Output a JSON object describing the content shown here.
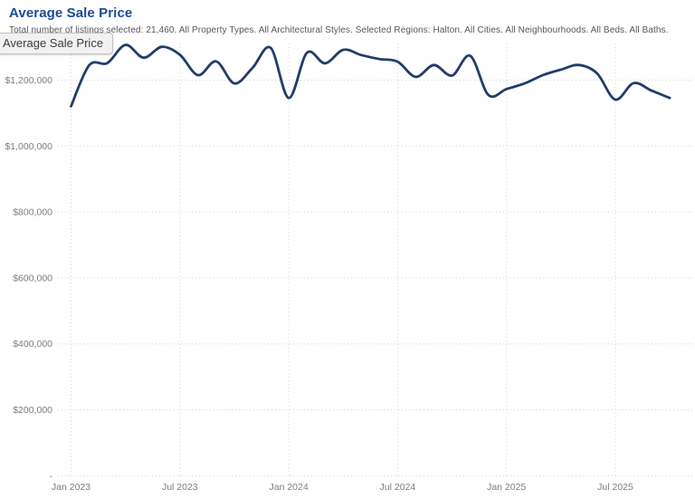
{
  "page": {
    "title": "Average Sale Price",
    "subtitle": "Total number of listings selected: 21,460. All Property Types. All Architectural Styles. Selected Regions: Halton. All Cities. All Neighbourhoods. All Beds. All Baths.",
    "tooltip": {
      "label": "Average Sale Price"
    }
  },
  "colors": {
    "background": "#ffffff",
    "title": "#1c4b94",
    "subtitle": "#575757",
    "line": "#213d6b",
    "grid": "#d6d6d6",
    "axis_label": "#7d7d7d",
    "tooltip_bg": "#f1f1f1",
    "tooltip_border": "#c2c2c2",
    "tooltip_text": "#3d3d3d"
  },
  "chart_data": {
    "type": "line",
    "title": "Average Sale Price",
    "xlabel": "",
    "ylabel": "",
    "legend": "none",
    "grid": "dotted",
    "smoothing": "spline",
    "ylim": [
      0,
      1400000
    ],
    "x": [
      "Jan 2023",
      "Feb 2023",
      "Mar 2023",
      "Apr 2023",
      "May 2023",
      "Jun 2023",
      "Jul 2023",
      "Aug 2023",
      "Sep 2023",
      "Oct 2023",
      "Nov 2023",
      "Dec 2023",
      "Jan 2024",
      "Feb 2024",
      "Mar 2024",
      "Apr 2024",
      "May 2024",
      "Jun 2024",
      "Jul 2024",
      "Aug 2024",
      "Sep 2024",
      "Oct 2024",
      "Nov 2024",
      "Dec 2024",
      "Jan 2025",
      "Feb 2025",
      "Mar 2025",
      "Apr 2025",
      "May 2025",
      "Jun 2025",
      "Jul 2025",
      "Aug 2025",
      "Sep 2025",
      "Oct 2025"
    ],
    "series": [
      {
        "name": "Average Sale Price",
        "values": [
          1121000,
          1245000,
          1252000,
          1307000,
          1268000,
          1301000,
          1277000,
          1215000,
          1257000,
          1190000,
          1237000,
          1298000,
          1146000,
          1283000,
          1251000,
          1292000,
          1276000,
          1264000,
          1256000,
          1210000,
          1246000,
          1214000,
          1274000,
          1155000,
          1173000,
          1190000,
          1215000,
          1232000,
          1246000,
          1220000,
          1141000,
          1191000,
          1168000,
          1146000
        ]
      }
    ],
    "y_ticks": [
      {
        "label": "$1,200,000",
        "value": 1200000
      },
      {
        "label": "$1,000,000",
        "value": 1000000
      },
      {
        "label": "$800,000",
        "value": 800000
      },
      {
        "label": "$600,000",
        "value": 600000
      },
      {
        "label": "$400,000",
        "value": 400000
      },
      {
        "label": "$200,000",
        "value": 200000
      },
      {
        "label": "-",
        "value": 0
      }
    ],
    "x_ticks": [
      {
        "label": "Jan 2023",
        "index": 0
      },
      {
        "label": "Jul 2023",
        "index": 6
      },
      {
        "label": "Jan 2024",
        "index": 12
      },
      {
        "label": "Jul 2024",
        "index": 18
      },
      {
        "label": "Jan 2025",
        "index": 24
      },
      {
        "label": "Jul 2025",
        "index": 30
      }
    ]
  }
}
